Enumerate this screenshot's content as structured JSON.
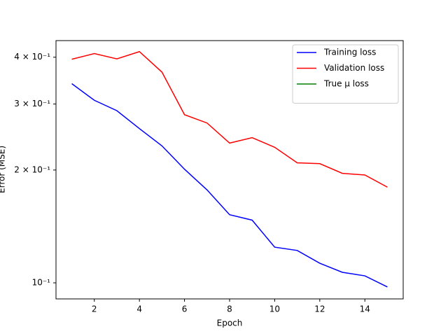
{
  "chart_data": {
    "type": "line",
    "x_label": "Epoch",
    "y_label": "Error (MSE)",
    "x": [
      1,
      2,
      3,
      4,
      5,
      6,
      7,
      8,
      9,
      10,
      11,
      12,
      13,
      14,
      15
    ],
    "series": [
      {
        "name": "Training loss",
        "color": "#0000ff",
        "values": [
          0.34,
          0.307,
          0.288,
          0.258,
          0.232,
          0.201,
          0.177,
          0.152,
          0.147,
          0.1245,
          0.122,
          0.1128,
          0.1067,
          0.1044,
          0.0975
        ]
      },
      {
        "name": "Validation loss",
        "color": "#ff0000",
        "values": [
          0.395,
          0.409,
          0.396,
          0.414,
          0.365,
          0.281,
          0.267,
          0.236,
          0.244,
          0.23,
          0.209,
          0.208,
          0.196,
          0.194,
          0.18
        ]
      },
      {
        "name": "True μ loss",
        "color": "#008000",
        "values": [
          null,
          null,
          null,
          null,
          null,
          null,
          null,
          null,
          null,
          null,
          null,
          null,
          null,
          null,
          null
        ]
      }
    ],
    "xlim": [
      0.3,
      15.7
    ],
    "xticks": [
      2,
      4,
      6,
      8,
      10,
      12,
      14
    ],
    "ylim": [
      0.0906,
      0.443
    ],
    "yscale": "log",
    "yticks": [
      {
        "value": 0.1,
        "label": "10⁻¹"
      },
      {
        "value": 0.2,
        "label": "2 × 10⁻¹"
      },
      {
        "value": 0.3,
        "label": "3 × 10⁻¹"
      },
      {
        "value": 0.4,
        "label": "4 × 10⁻¹"
      }
    ],
    "legend": "upper right"
  }
}
